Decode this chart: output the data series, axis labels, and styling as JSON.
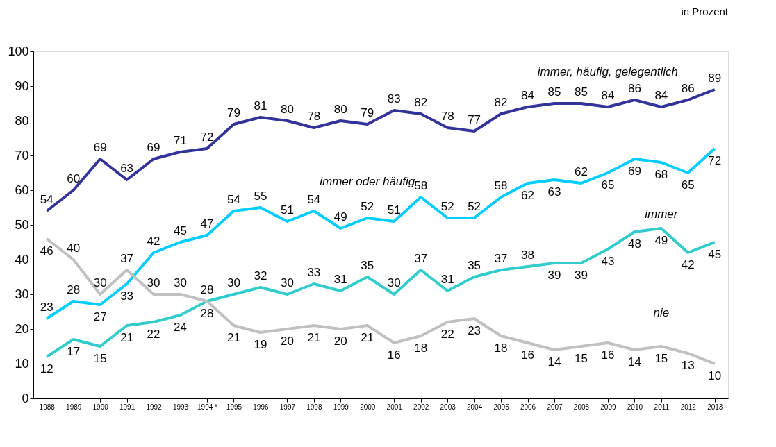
{
  "chart_data": {
    "type": "line",
    "annotations": [
      "in Prozent"
    ],
    "categories": [
      "1988",
      "1989",
      "1990",
      "1991",
      "1992",
      "1993",
      "1994 *",
      "1995",
      "1996",
      "1997",
      "1998",
      "1999",
      "2000",
      "2001",
      "2002",
      "2003",
      "2004",
      "2005",
      "2006",
      "2007",
      "2008",
      "2009",
      "2010",
      "2011",
      "2012",
      "2013"
    ],
    "series": [
      {
        "name": "immer, häufig, gelegentlich",
        "color": "#333399",
        "values": [
          54,
          60,
          69,
          63,
          69,
          71,
          72,
          79,
          81,
          80,
          78,
          80,
          79,
          83,
          82,
          78,
          77,
          82,
          84,
          85,
          85,
          84,
          86,
          84,
          86,
          89
        ]
      },
      {
        "name": "immer oder häufig",
        "color": "#00ccff",
        "values": [
          23,
          28,
          27,
          33,
          42,
          45,
          47,
          54,
          55,
          51,
          54,
          49,
          52,
          51,
          58,
          52,
          52,
          58,
          62,
          63,
          62,
          65,
          69,
          68,
          65,
          72
        ]
      },
      {
        "name": "immer",
        "color": "#33cccc",
        "values": [
          12,
          17,
          15,
          21,
          22,
          24,
          28,
          30,
          32,
          30,
          33,
          31,
          35,
          30,
          37,
          31,
          35,
          37,
          38,
          39,
          39,
          43,
          48,
          49,
          42,
          45
        ]
      },
      {
        "name": "nie",
        "color": "#c0c0c0",
        "values": [
          46,
          40,
          30,
          37,
          30,
          30,
          28,
          21,
          19,
          20,
          21,
          20,
          21,
          16,
          18,
          22,
          23,
          18,
          16,
          14,
          15,
          16,
          14,
          15,
          13,
          10
        ]
      }
    ],
    "ylim": [
      0,
      100
    ],
    "yticks": [
      0,
      10,
      20,
      30,
      40,
      50,
      60,
      70,
      80,
      90,
      100
    ],
    "grid": false,
    "marker": "none",
    "line_style": "solid",
    "data_labels": true
  }
}
